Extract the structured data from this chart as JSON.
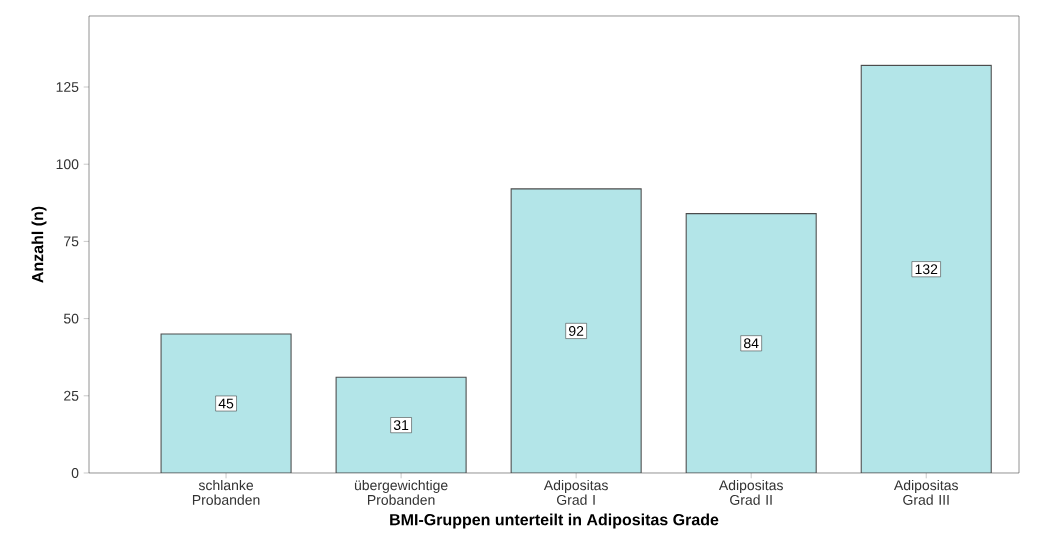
{
  "chart_data": {
    "type": "bar",
    "xlabel": "BMI-Gruppen unterteilt in Adipositas Grade",
    "ylabel": "Anzahl (n)",
    "categories": [
      "schlanke Probanden",
      "übergewichtige Probanden",
      "Adipositas Grad I",
      "Adipositas Grad II",
      "Adipositas Grad III"
    ],
    "values": [
      45,
      31,
      92,
      84,
      132
    ],
    "color": "#b3e5e8",
    "ylim": [
      0,
      148
    ],
    "yticks": [
      0,
      25,
      50,
      75,
      100,
      125
    ],
    "grid": false,
    "data_labels": true
  }
}
